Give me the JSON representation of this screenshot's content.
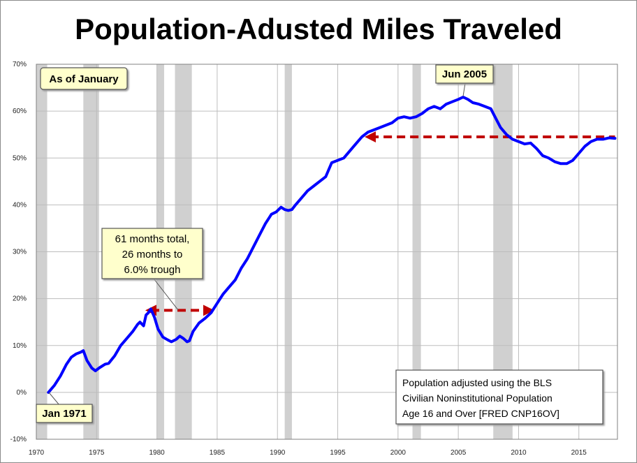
{
  "chart_data": {
    "type": "line",
    "title": "Population-Adusted Miles Traveled",
    "xlabel": "",
    "ylabel": "",
    "xlim": [
      1970,
      2018.2
    ],
    "ylim": [
      -10,
      70
    ],
    "x_ticks": [
      "1970",
      "1975",
      "1980",
      "1985",
      "1990",
      "1995",
      "2000",
      "2005",
      "2010",
      "2015"
    ],
    "y_ticks": [
      "-10%",
      "0%",
      "10%",
      "20%",
      "30%",
      "40%",
      "50%",
      "60%",
      "70%"
    ],
    "grid": true,
    "recessions": [
      [
        1970.0,
        1970.9
      ],
      [
        1973.9,
        1975.2
      ],
      [
        1980.0,
        1980.6
      ],
      [
        1981.5,
        1982.9
      ],
      [
        1990.6,
        1991.2
      ],
      [
        2001.2,
        2001.9
      ],
      [
        2007.9,
        2009.5
      ]
    ],
    "series": [
      {
        "color": "#0000ff",
        "x": [
          1971.0,
          1971.5,
          1972.0,
          1972.5,
          1972.9,
          1973.3,
          1973.7,
          1973.9,
          1974.2,
          1974.6,
          1974.9,
          1975.2,
          1975.7,
          1976.0,
          1976.5,
          1977.0,
          1977.5,
          1978.0,
          1978.4,
          1978.6,
          1978.9,
          1979.1,
          1979.3,
          1979.5,
          1979.8,
          1980.1,
          1980.5,
          1980.9,
          1981.2,
          1981.6,
          1981.9,
          1982.2,
          1982.5,
          1982.7,
          1983.0,
          1983.5,
          1984.0,
          1984.5,
          1985.0,
          1985.5,
          1986.0,
          1986.5,
          1987.0,
          1987.5,
          1988.0,
          1988.5,
          1989.0,
          1989.5,
          1989.9,
          1990.3,
          1990.6,
          1990.9,
          1991.2,
          1991.5,
          1992.0,
          1992.5,
          1993.0,
          1993.5,
          1994.0,
          1994.5,
          1995.0,
          1995.5,
          1996.0,
          1996.5,
          1997.0,
          1997.5,
          1998.0,
          1998.5,
          1999.0,
          1999.5,
          2000.0,
          2000.5,
          2001.0,
          2001.5,
          2002.0,
          2002.5,
          2003.0,
          2003.5,
          2004.0,
          2004.5,
          2005.0,
          2005.4,
          2005.8,
          2006.2,
          2006.7,
          2007.2,
          2007.7,
          2008.0,
          2008.5,
          2009.0,
          2009.5,
          2010.0,
          2010.5,
          2011.0,
          2011.5,
          2012.0,
          2012.5,
          2013.0,
          2013.5,
          2014.0,
          2014.5,
          2015.0,
          2015.5,
          2016.0,
          2016.5,
          2017.0,
          2017.5,
          2018.0
        ],
        "values": [
          0.0,
          1.5,
          3.5,
          6.0,
          7.5,
          8.2,
          8.6,
          8.9,
          6.8,
          5.2,
          4.6,
          5.2,
          6.0,
          6.2,
          7.8,
          10.0,
          11.5,
          13.0,
          14.5,
          15.0,
          14.2,
          16.5,
          17.0,
          17.8,
          16.0,
          13.5,
          11.8,
          11.2,
          10.8,
          11.3,
          12.0,
          11.5,
          10.8,
          11.0,
          13.0,
          14.8,
          15.8,
          17.0,
          19.0,
          21.0,
          22.5,
          24.0,
          26.5,
          28.5,
          31.0,
          33.5,
          36.0,
          38.0,
          38.5,
          39.5,
          39.0,
          38.8,
          39.0,
          40.0,
          41.5,
          43.0,
          44.0,
          45.0,
          46.0,
          49.0,
          49.5,
          50.0,
          51.5,
          53.0,
          54.5,
          55.5,
          56.0,
          56.5,
          57.0,
          57.5,
          58.5,
          58.8,
          58.5,
          58.8,
          59.5,
          60.5,
          61.0,
          60.5,
          61.5,
          62.0,
          62.5,
          63.0,
          62.5,
          61.8,
          61.5,
          61.0,
          60.5,
          59.0,
          56.5,
          55.0,
          54.0,
          53.5,
          53.0,
          53.2,
          52.0,
          50.5,
          50.0,
          49.2,
          48.8,
          48.8,
          49.5,
          51.0,
          52.5,
          53.5,
          54.0,
          54.0,
          54.3,
          54.2
        ]
      }
    ],
    "arrows": [
      {
        "x_from": 1997.7,
        "x_to": 2018.0,
        "y": 54.5,
        "head": "start"
      },
      {
        "x_from": 1979.5,
        "x_to": 1984.3,
        "y": 17.5,
        "head": "both"
      }
    ],
    "annotations": {
      "as_of": "As of January",
      "peak": "Jun 2005",
      "start": "Jan 1971",
      "gap_line1": "61 months total,",
      "gap_line2": "26 months to",
      "gap_line3": "6.0% trough",
      "note_line1": "Population adjusted using the BLS",
      "note_line2": "Civilian Noninstitutional Population",
      "note_line3": "Age 16 and Over  [FRED CNP16OV]"
    }
  }
}
